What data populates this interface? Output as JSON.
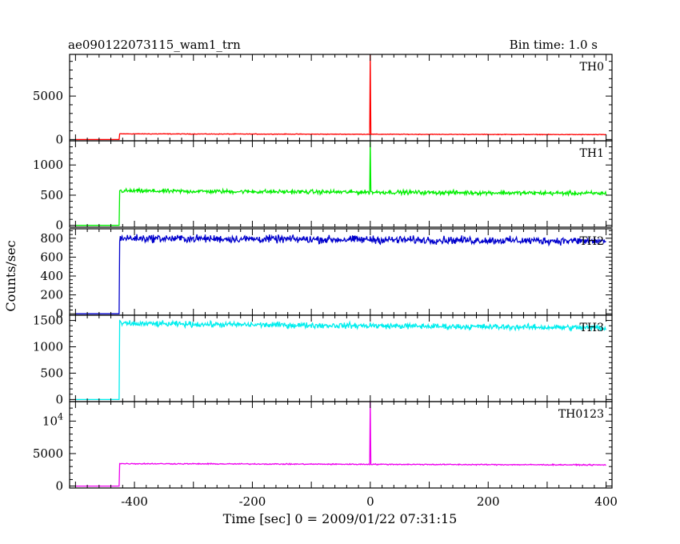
{
  "header": {
    "title": "ae090122073115_wam1_trn",
    "bin_time": "Bin time: 1.0 s"
  },
  "axes": {
    "xlabel": "Time [sec] 0 = 2009/01/22 07:31:15",
    "ylabel": "Counts/sec"
  },
  "chart_data": {
    "type": "line",
    "title": "ae090122073115_wam1_trn",
    "xlabel": "Time [sec] 0 = 2009/01/22 07:31:15",
    "ylabel": "Counts/sec",
    "xlim": [
      -510,
      410
    ],
    "xticks": [
      -400,
      -200,
      0,
      200,
      400
    ],
    "trigger_time": 0,
    "onset_time": -425,
    "grid": false,
    "panels": [
      {
        "name": "TH0",
        "color": "#ff0000",
        "ylim": [
          -150,
          9800
        ],
        "yticks": [
          0,
          5000
        ],
        "ytick_labels": [
          "0",
          "5000"
        ],
        "pre_onset_level": 0,
        "level_start": 650,
        "level_end": 560,
        "noise": 25,
        "peak": 9800
      },
      {
        "name": "TH1",
        "color": "#00ee00",
        "ylim": [
          -30,
          1400
        ],
        "yticks": [
          0,
          500,
          1000
        ],
        "ytick_labels": [
          "0",
          "500",
          "1000"
        ],
        "pre_onset_level": 0,
        "level_start": 570,
        "level_end": 530,
        "noise": 25,
        "peak": 1380
      },
      {
        "name": "TH2",
        "color": "#0000cc",
        "ylim": [
          -15,
          900
        ],
        "yticks": [
          0,
          200,
          400,
          600,
          800
        ],
        "ytick_labels": [
          "0",
          "200",
          "400",
          "600",
          "800"
        ],
        "pre_onset_level": 0,
        "level_start": 800,
        "level_end": 770,
        "noise": 30,
        "peak": 820
      },
      {
        "name": "TH3",
        "color": "#00eeee",
        "ylim": [
          -40,
          1600
        ],
        "yticks": [
          0,
          500,
          1000,
          1500
        ],
        "ytick_labels": [
          "0",
          "500",
          "1000",
          "1500"
        ],
        "pre_onset_level": 0,
        "level_start": 1440,
        "level_end": 1360,
        "noise": 40,
        "peak": 1460
      },
      {
        "name": "TH0123",
        "color": "#ee00ee",
        "ylim": [
          -300,
          13000
        ],
        "yticks": [
          0,
          5000,
          10000
        ],
        "ytick_labels": [
          "0",
          "5000",
          "10^4"
        ],
        "pre_onset_level": 0,
        "level_start": 3450,
        "level_end": 3250,
        "noise": 60,
        "peak": 13000
      }
    ]
  }
}
